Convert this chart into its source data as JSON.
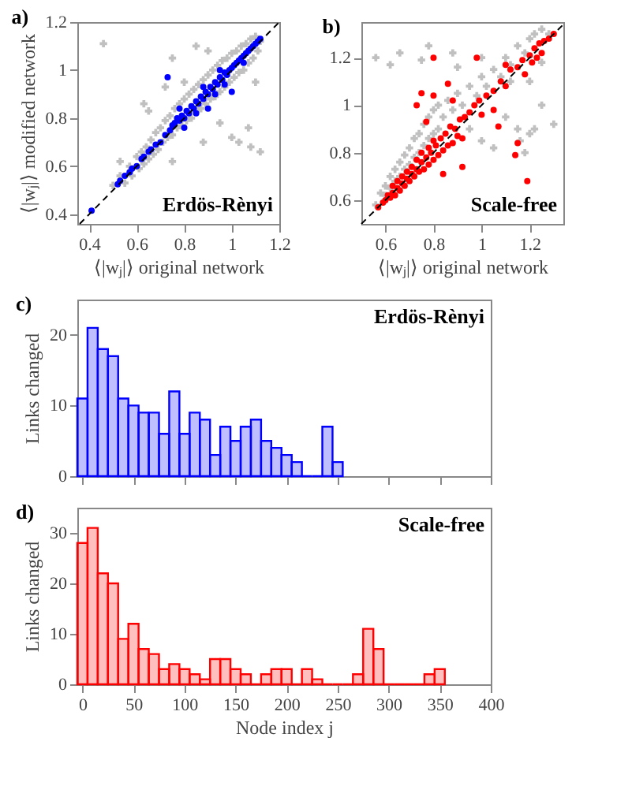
{
  "chart_data": [
    {
      "type": "scatter",
      "title": "a)",
      "xlabel": "⟨|wⱼ|⟩ original network",
      "ylabel": "⟨|wⱼ|⟩ modified network",
      "xlim": [
        0.35,
        1.2
      ],
      "ylim": [
        0.36,
        1.2
      ],
      "xticks": [
        0.4,
        0.6,
        0.8,
        1,
        1.2
      ],
      "yticks": [
        0.4,
        0.6,
        0.8,
        1,
        1.2
      ],
      "annotations": [
        "Erdös-Rènyi"
      ],
      "series": [
        {
          "color": "#c0c0c0",
          "marker": "cross",
          "x": [
            0.5,
            0.53,
            0.55,
            0.57,
            0.58,
            0.6,
            0.61,
            0.62,
            0.63,
            0.64,
            0.65,
            0.66,
            0.67,
            0.68,
            0.69,
            0.7,
            0.71,
            0.72,
            0.73,
            0.74,
            0.75,
            0.76,
            0.77,
            0.78,
            0.79,
            0.8,
            0.81,
            0.82,
            0.83,
            0.84,
            0.85,
            0.86,
            0.87,
            0.88,
            0.89,
            0.9,
            0.91,
            0.92,
            0.93,
            0.94,
            0.95,
            0.96,
            0.97,
            0.98,
            0.99,
            1.0,
            1.01,
            1.02,
            1.03,
            1.04,
            1.05,
            1.06,
            1.07,
            1.08,
            1.09,
            1.1,
            1.11,
            1.12,
            0.46,
            0.63,
            0.65,
            0.72,
            0.75,
            0.85,
            0.9,
            0.75,
            0.88,
            1.0,
            1.03,
            1.07,
            1.08,
            1.12,
            0.95,
            1.1,
            0.8,
            0.53
          ],
          "values": [
            0.52,
            0.56,
            0.53,
            0.6,
            0.56,
            0.64,
            0.59,
            0.66,
            0.61,
            0.68,
            0.63,
            0.71,
            0.65,
            0.74,
            0.67,
            0.76,
            0.7,
            0.79,
            0.72,
            0.81,
            0.73,
            0.84,
            0.76,
            0.86,
            0.77,
            0.88,
            0.79,
            0.9,
            0.8,
            0.92,
            0.83,
            0.94,
            0.84,
            0.96,
            0.86,
            0.98,
            0.88,
            1.0,
            0.89,
            1.02,
            0.91,
            1.04,
            0.93,
            1.05,
            0.95,
            1.07,
            0.97,
            1.08,
            0.99,
            1.1,
            1.0,
            1.11,
            1.03,
            1.13,
            1.05,
            1.14,
            1.08,
            1.12,
            1.11,
            0.86,
            0.83,
            0.93,
            1.05,
            1.1,
            1.08,
            0.62,
            0.7,
            0.72,
            0.7,
            0.76,
            0.68,
            0.66,
            0.78,
            0.95,
            0.95,
            0.62
          ]
        },
        {
          "color": "#0000ff",
          "marker": "circle",
          "x": [
            0.41,
            0.52,
            0.53,
            0.55,
            0.57,
            0.58,
            0.6,
            0.62,
            0.63,
            0.65,
            0.66,
            0.68,
            0.7,
            0.72,
            0.74,
            0.75,
            0.76,
            0.77,
            0.78,
            0.79,
            0.8,
            0.81,
            0.82,
            0.83,
            0.84,
            0.85,
            0.86,
            0.87,
            0.88,
            0.89,
            0.9,
            0.91,
            0.92,
            0.93,
            0.94,
            0.95,
            0.96,
            0.97,
            0.98,
            0.99,
            1.0,
            1.01,
            1.02,
            1.03,
            1.04,
            1.05,
            1.06,
            1.07,
            1.08,
            1.09,
            1.1,
            1.11,
            1.12,
            0.73,
            0.85,
            0.9,
            0.93,
            1.0,
            0.97,
            0.8,
            0.88,
            0.95,
            1.05,
            0.78
          ],
          "values": [
            0.415,
            0.525,
            0.54,
            0.56,
            0.575,
            0.59,
            0.6,
            0.63,
            0.64,
            0.66,
            0.67,
            0.69,
            0.7,
            0.73,
            0.75,
            0.77,
            0.78,
            0.8,
            0.79,
            0.81,
            0.8,
            0.83,
            0.82,
            0.85,
            0.84,
            0.87,
            0.86,
            0.89,
            0.88,
            0.91,
            0.9,
            0.93,
            0.92,
            0.95,
            0.94,
            0.97,
            0.96,
            0.99,
            0.98,
            1.0,
            1.01,
            1.02,
            1.03,
            1.04,
            1.05,
            1.06,
            1.07,
            1.08,
            1.09,
            1.1,
            1.11,
            1.12,
            1.13,
            0.97,
            0.82,
            0.84,
            0.9,
            0.91,
            0.94,
            0.76,
            0.93,
            1.0,
            1.03,
            0.84
          ]
        },
        {
          "type": "line",
          "color": "#000000",
          "line_style": "dashed",
          "x": [
            0.36,
            1.2
          ],
          "values": [
            0.36,
            1.2
          ]
        }
      ]
    },
    {
      "type": "scatter",
      "title": "b)",
      "xlabel": "⟨|wⱼ|⟩ original network",
      "xlim": [
        0.5,
        1.34
      ],
      "ylim": [
        0.5,
        1.35
      ],
      "xticks": [
        0.6,
        0.8,
        1,
        1.2
      ],
      "yticks": [
        0.6,
        0.8,
        1,
        1.2
      ],
      "annotations": [
        "Scale-free"
      ],
      "series": [
        {
          "color": "#c0c0c0",
          "marker": "cross",
          "x": [
            0.56,
            0.58,
            0.6,
            0.6,
            0.62,
            0.62,
            0.64,
            0.64,
            0.66,
            0.66,
            0.68,
            0.68,
            0.7,
            0.7,
            0.72,
            0.72,
            0.74,
            0.74,
            0.76,
            0.76,
            0.78,
            0.78,
            0.8,
            0.8,
            0.82,
            0.82,
            0.84,
            0.86,
            0.88,
            0.9,
            0.92,
            0.95,
            0.98,
            1.0,
            1.02,
            1.05,
            1.08,
            1.1,
            1.12,
            1.15,
            1.18,
            1.2,
            1.22,
            1.25,
            1.28,
            0.56,
            0.62,
            0.66,
            0.75,
            0.78,
            0.88,
            0.9,
            1.0,
            1.12,
            1.2,
            1.25,
            1.3,
            1.2,
            1.15,
            1.16,
            1.18,
            1.1,
            1.05,
            1.0,
            0.95,
            1.22,
            1.25
          ],
          "values": [
            0.58,
            0.63,
            0.66,
            0.62,
            0.7,
            0.65,
            0.73,
            0.68,
            0.76,
            0.7,
            0.79,
            0.73,
            0.82,
            0.75,
            0.86,
            0.78,
            0.88,
            0.8,
            0.92,
            0.83,
            0.95,
            0.86,
            0.98,
            0.88,
            1.0,
            0.9,
            0.95,
            1.02,
            0.98,
            1.05,
            1.0,
            1.08,
            1.04,
            1.12,
            1.08,
            1.15,
            1.12,
            1.2,
            1.17,
            1.25,
            1.22,
            1.28,
            1.3,
            1.32,
            1.3,
            1.2,
            1.17,
            1.22,
            1.19,
            1.25,
            1.22,
            1.16,
            1.2,
            1.1,
            1.1,
            1.0,
            0.92,
            0.88,
            0.9,
            0.85,
            0.8,
            0.95,
            0.82,
            0.85,
            0.9,
            0.9,
            1.18
          ]
        },
        {
          "color": "#ff0000",
          "marker": "circle",
          "x": [
            0.57,
            0.59,
            0.6,
            0.61,
            0.62,
            0.63,
            0.63,
            0.64,
            0.65,
            0.65,
            0.66,
            0.67,
            0.67,
            0.68,
            0.69,
            0.69,
            0.7,
            0.71,
            0.71,
            0.72,
            0.73,
            0.73,
            0.74,
            0.75,
            0.75,
            0.76,
            0.77,
            0.78,
            0.78,
            0.79,
            0.8,
            0.8,
            0.81,
            0.82,
            0.83,
            0.84,
            0.85,
            0.86,
            0.87,
            0.88,
            0.89,
            0.9,
            0.91,
            0.92,
            0.93,
            0.95,
            0.97,
            0.99,
            1.0,
            1.02,
            1.05,
            1.08,
            1.1,
            1.12,
            1.15,
            1.17,
            1.18,
            1.2,
            1.21,
            1.22,
            1.23,
            1.24,
            1.25,
            1.26,
            1.28,
            1.3,
            0.73,
            0.75,
            0.8,
            0.98,
            0.8,
            0.86,
            0.88,
            1.1,
            1.07,
            1.15,
            1.14,
            1.19,
            0.84,
            0.92,
            1.05,
            0.77
          ],
          "values": [
            0.57,
            0.59,
            0.6,
            0.62,
            0.61,
            0.63,
            0.66,
            0.62,
            0.65,
            0.68,
            0.64,
            0.67,
            0.7,
            0.66,
            0.69,
            0.72,
            0.68,
            0.71,
            0.74,
            0.7,
            0.73,
            0.77,
            0.72,
            0.76,
            0.8,
            0.73,
            0.78,
            0.82,
            0.75,
            0.8,
            0.85,
            0.77,
            0.83,
            0.79,
            0.86,
            0.81,
            0.88,
            0.83,
            0.91,
            0.84,
            0.9,
            0.87,
            0.94,
            0.86,
            0.95,
            0.97,
            1.0,
            1.02,
            0.96,
            1.04,
            1.06,
            1.1,
            1.08,
            1.15,
            1.16,
            1.19,
            1.13,
            1.21,
            1.18,
            1.24,
            1.2,
            1.26,
            1.22,
            1.27,
            1.28,
            1.3,
            1.0,
            1.05,
            1.2,
            1.2,
            1.04,
            1.09,
            1.02,
            1.17,
            0.91,
            0.84,
            0.79,
            0.68,
            0.71,
            0.74,
            0.98,
            0.93
          ]
        },
        {
          "type": "line",
          "color": "#000000",
          "line_style": "dashed",
          "x": [
            0.5,
            1.34
          ],
          "values": [
            0.5,
            1.34
          ]
        }
      ]
    },
    {
      "type": "histogram",
      "title": "c)",
      "ylabel": "Links changed",
      "color": "#0000ff",
      "xlim": [
        -5,
        400
      ],
      "ylim": [
        0,
        25
      ],
      "xticks": [
        0,
        50,
        100,
        150,
        200,
        250,
        300,
        350,
        400
      ],
      "yticks": [
        0,
        10,
        20
      ],
      "tick_labels": "y",
      "annotations": [
        "Erdös-Rènyi"
      ],
      "bins": [
        -5,
        5,
        15,
        25,
        35,
        45,
        55,
        65,
        75,
        85,
        95,
        105,
        115,
        125,
        135,
        145,
        155,
        165,
        175,
        185,
        195,
        205,
        215,
        225,
        235,
        245,
        255
      ],
      "values": [
        11,
        21,
        18,
        17,
        11,
        10,
        9,
        9,
        6,
        12,
        6,
        9,
        8,
        3,
        7,
        5,
        7,
        8,
        5,
        4,
        3,
        2,
        0,
        0,
        7,
        2
      ]
    },
    {
      "type": "histogram",
      "title": "d)",
      "xlabel": "Node index j",
      "ylabel": "Links changed",
      "color": "#ff0000",
      "xlim": [
        -5,
        400
      ],
      "ylim": [
        0,
        35
      ],
      "xticks": [
        0,
        50,
        100,
        150,
        200,
        250,
        300,
        350,
        400
      ],
      "yticks": [
        0,
        10,
        20,
        30
      ],
      "annotations": [
        "Scale-free"
      ],
      "bins": [
        -5,
        5,
        15,
        25,
        35,
        45,
        55,
        65,
        75,
        85,
        95,
        105,
        115,
        125,
        135,
        145,
        155,
        165,
        175,
        185,
        195,
        205,
        215,
        225,
        235,
        245,
        255,
        265,
        275,
        285,
        295,
        305,
        315,
        325,
        335,
        345,
        355
      ],
      "values": [
        28,
        31,
        22,
        20,
        9,
        12,
        7,
        6,
        3,
        4,
        3,
        2,
        1,
        5,
        5,
        3,
        2,
        0,
        2,
        3,
        3,
        0,
        3,
        1,
        0,
        0,
        0,
        2,
        11,
        7,
        0,
        0,
        0,
        0,
        2,
        3
      ]
    }
  ]
}
